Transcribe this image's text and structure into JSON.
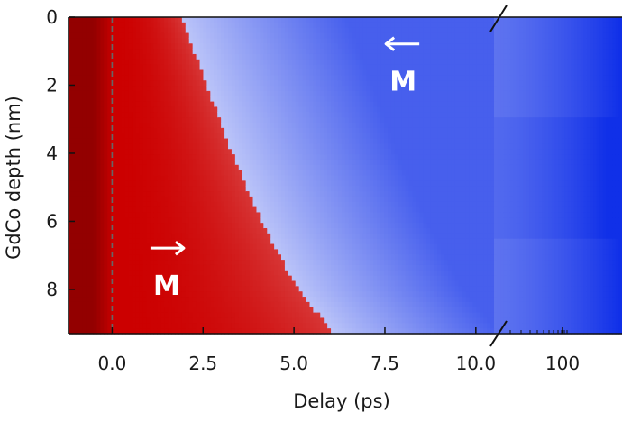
{
  "chart_data": {
    "type": "heatmap",
    "title": "",
    "xlabel": "Delay (ps)",
    "ylabel": "GdCo depth (nm)",
    "x_tick_labels": [
      "0.0",
      "2.5",
      "5.0",
      "7.5",
      "10.0",
      "100"
    ],
    "y_tick_labels": [
      "0",
      "2",
      "4",
      "6",
      "8"
    ],
    "xlim": [
      -1.2,
      10.5
    ],
    "x_break_at": 10.5,
    "ylim": [
      0,
      9.3
    ],
    "y_inverted": true,
    "reference_line_x": 0,
    "colormap": {
      "positive": "#cc0000",
      "zero": "#ffffff",
      "negative": "#1030e8",
      "deep_positive": "#7a0000"
    },
    "reversal_front": [
      {
        "depth_nm": 0,
        "delay_ps": 1.9
      },
      {
        "depth_nm": 2,
        "delay_ps": 2.6
      },
      {
        "depth_nm": 4,
        "delay_ps": 3.3
      },
      {
        "depth_nm": 6,
        "delay_ps": 4.1
      },
      {
        "depth_nm": 8,
        "delay_ps": 5.1
      },
      {
        "depth_nm": 9.3,
        "delay_ps": 6.1
      }
    ],
    "annotations": [
      {
        "text": "M",
        "arrow": "right",
        "delay_ps": 1.5,
        "depth_nm": 7.9
      },
      {
        "text": "M",
        "arrow": "left",
        "delay_ps": 8.0,
        "depth_nm": 1.9
      }
    ]
  }
}
